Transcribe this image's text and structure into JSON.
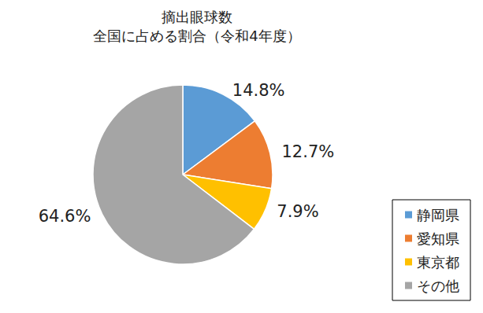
{
  "chart_data": {
    "type": "pie",
    "title": "摘出眼球数\n全国に占める割合（令和4年度）",
    "categories": [
      "静岡県",
      "愛知県",
      "東京都",
      "その他"
    ],
    "values": [
      14.8,
      12.7,
      7.9,
      64.6
    ],
    "value_labels": [
      "14.8%",
      "12.7%",
      "7.9%",
      "64.6%"
    ],
    "colors": [
      "#5b9bd5",
      "#ed7d31",
      "#ffc000",
      "#a5a5a5"
    ],
    "data_labels": true,
    "legend": "bottom-right"
  }
}
